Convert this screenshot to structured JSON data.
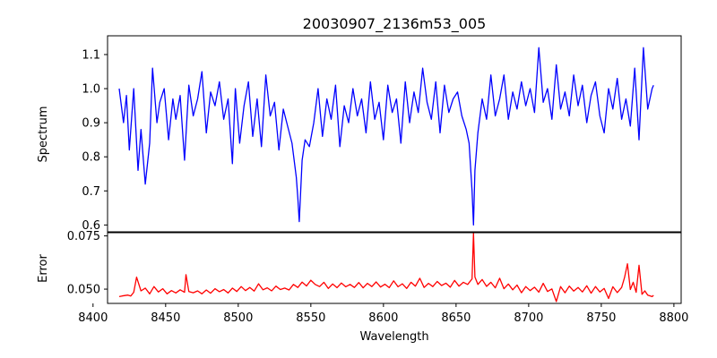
{
  "chart_data": [
    {
      "panel": "spectrum",
      "type": "line",
      "title": "20030907_2136m53_005",
      "xlabel": "",
      "ylabel": "Spectrum",
      "xlim": [
        8410,
        8805
      ],
      "ylim": [
        0.58,
        1.155
      ],
      "xticks": [
        8400,
        8450,
        8500,
        8550,
        8600,
        8650,
        8700,
        8750,
        8800
      ],
      "yticks": [
        0.6,
        0.7,
        0.8,
        0.9,
        1.0,
        1.1
      ],
      "ytick_labels": [
        "0.6",
        "0.7",
        "0.8",
        "0.9",
        "1.0",
        "1.1"
      ],
      "series": [
        {
          "name": "spectrum",
          "color": "#0000ff",
          "x": [
            8418,
            8421,
            8423,
            8425,
            8428,
            8431,
            8433,
            8436,
            8439,
            8441,
            8444,
            8446,
            8449,
            8452,
            8455,
            8457,
            8460,
            8463,
            8466,
            8469,
            8472,
            8475,
            8478,
            8481,
            8484,
            8487,
            8490,
            8493,
            8496,
            8498,
            8501,
            8504,
            8507,
            8510,
            8513,
            8516,
            8519,
            8522,
            8525,
            8528,
            8531,
            8534,
            8537,
            8540,
            8541,
            8542,
            8543,
            8544,
            8546,
            8549,
            8552,
            8555,
            8558,
            8561,
            8564,
            8567,
            8570,
            8573,
            8576,
            8579,
            8582,
            8585,
            8588,
            8591,
            8594,
            8597,
            8600,
            8603,
            8606,
            8609,
            8612,
            8615,
            8618,
            8621,
            8624,
            8627,
            8630,
            8633,
            8636,
            8639,
            8642,
            8645,
            8648,
            8651,
            8654,
            8657,
            8659,
            8661,
            8662,
            8663,
            8665,
            8668,
            8671,
            8674,
            8677,
            8680,
            8683,
            8686,
            8689,
            8692,
            8695,
            8698,
            8701,
            8704,
            8707,
            8710,
            8713,
            8716,
            8719,
            8722,
            8725,
            8728,
            8731,
            8734,
            8737,
            8740,
            8743,
            8746,
            8749,
            8752,
            8755,
            8758,
            8761,
            8764,
            8767,
            8770,
            8773,
            8776,
            8779,
            8782,
            8785,
            8786
          ],
          "y": [
            1.0,
            0.9,
            0.98,
            0.82,
            1.0,
            0.76,
            0.88,
            0.72,
            0.84,
            1.06,
            0.9,
            0.96,
            1.0,
            0.85,
            0.97,
            0.91,
            0.98,
            0.79,
            1.01,
            0.92,
            0.97,
            1.05,
            0.87,
            0.99,
            0.95,
            1.02,
            0.91,
            0.97,
            0.78,
            1.0,
            0.84,
            0.95,
            1.02,
            0.86,
            0.97,
            0.83,
            1.04,
            0.92,
            0.96,
            0.82,
            0.94,
            0.89,
            0.84,
            0.74,
            0.68,
            0.61,
            0.7,
            0.79,
            0.85,
            0.83,
            0.9,
            1.0,
            0.86,
            0.97,
            0.91,
            1.01,
            0.83,
            0.95,
            0.9,
            1.0,
            0.92,
            0.97,
            0.87,
            1.02,
            0.91,
            0.96,
            0.85,
            1.01,
            0.93,
            0.97,
            0.84,
            1.02,
            0.9,
            0.99,
            0.93,
            1.06,
            0.96,
            0.91,
            1.02,
            0.87,
            1.01,
            0.93,
            0.97,
            0.99,
            0.92,
            0.88,
            0.84,
            0.7,
            0.6,
            0.76,
            0.87,
            0.97,
            0.91,
            1.04,
            0.92,
            0.97,
            1.04,
            0.91,
            0.99,
            0.94,
            1.02,
            0.95,
            1.0,
            0.93,
            1.12,
            0.96,
            1.0,
            0.91,
            1.07,
            0.94,
            0.99,
            0.92,
            1.04,
            0.95,
            1.01,
            0.9,
            0.98,
            1.02,
            0.92,
            0.87,
            1.0,
            0.94,
            1.03,
            0.91,
            0.97,
            0.89,
            1.06,
            0.85,
            1.12,
            0.94,
            1.0,
            1.01
          ]
        }
      ]
    },
    {
      "panel": "error",
      "type": "line",
      "title": "",
      "xlabel": "Wavelength",
      "ylabel": "Error",
      "xlim": [
        8410,
        8805
      ],
      "ylim": [
        0.0433,
        0.0765
      ],
      "xticks": [
        8400,
        8450,
        8500,
        8550,
        8600,
        8650,
        8700,
        8750,
        8800
      ],
      "xtick_labels": [
        "8400",
        "8450",
        "8500",
        "8550",
        "8600",
        "8650",
        "8700",
        "8750",
        "8800"
      ],
      "yticks": [
        0.05,
        0.075
      ],
      "ytick_labels": [
        "0.050",
        "0.075"
      ],
      "series": [
        {
          "name": "error",
          "color": "#ff0000",
          "x": [
            8418,
            8420,
            8422,
            8424,
            8426,
            8428,
            8430,
            8433,
            8436,
            8439,
            8442,
            8445,
            8448,
            8451,
            8454,
            8457,
            8460,
            8463,
            8464,
            8466,
            8469,
            8472,
            8475,
            8478,
            8481,
            8484,
            8487,
            8490,
            8493,
            8496,
            8499,
            8502,
            8505,
            8508,
            8511,
            8514,
            8517,
            8520,
            8523,
            8526,
            8529,
            8532,
            8535,
            8538,
            8541,
            8544,
            8547,
            8550,
            8553,
            8556,
            8559,
            8562,
            8565,
            8568,
            8571,
            8574,
            8577,
            8580,
            8583,
            8586,
            8589,
            8592,
            8595,
            8598,
            8601,
            8604,
            8607,
            8610,
            8613,
            8616,
            8619,
            8622,
            8625,
            8628,
            8631,
            8634,
            8637,
            8640,
            8643,
            8646,
            8649,
            8652,
            8655,
            8658,
            8661,
            8662,
            8663,
            8665,
            8668,
            8671,
            8674,
            8677,
            8680,
            8683,
            8686,
            8689,
            8692,
            8695,
            8698,
            8701,
            8704,
            8707,
            8710,
            8713,
            8716,
            8719,
            8722,
            8725,
            8728,
            8731,
            8734,
            8737,
            8740,
            8743,
            8746,
            8749,
            8752,
            8755,
            8758,
            8761,
            8764,
            8766,
            8768,
            8770,
            8772,
            8774,
            8776,
            8778,
            8780,
            8782,
            8785,
            8786
          ],
          "y": [
            0.0465,
            0.0468,
            0.047,
            0.0472,
            0.0468,
            0.0485,
            0.0556,
            0.0492,
            0.0505,
            0.0478,
            0.0512,
            0.0487,
            0.0502,
            0.0478,
            0.0493,
            0.0482,
            0.0497,
            0.0485,
            0.0568,
            0.0489,
            0.0483,
            0.0492,
            0.0478,
            0.0496,
            0.0481,
            0.0502,
            0.0488,
            0.0498,
            0.0482,
            0.0505,
            0.0489,
            0.0512,
            0.0493,
            0.0508,
            0.0491,
            0.0525,
            0.0497,
            0.0506,
            0.0492,
            0.0514,
            0.0498,
            0.0505,
            0.0496,
            0.0522,
            0.0508,
            0.0533,
            0.0515,
            0.0542,
            0.0522,
            0.0512,
            0.0532,
            0.0503,
            0.0524,
            0.0507,
            0.0529,
            0.0511,
            0.0522,
            0.0508,
            0.0531,
            0.0506,
            0.0527,
            0.0512,
            0.0534,
            0.051,
            0.0523,
            0.0507,
            0.0539,
            0.0511,
            0.0525,
            0.0503,
            0.0532,
            0.0514,
            0.0551,
            0.0508,
            0.0527,
            0.0512,
            0.0536,
            0.0517,
            0.0528,
            0.0509,
            0.0541,
            0.0514,
            0.0532,
            0.0522,
            0.0548,
            0.0762,
            0.0557,
            0.0522,
            0.0545,
            0.0513,
            0.0532,
            0.0506,
            0.0551,
            0.0502,
            0.0524,
            0.0497,
            0.0519,
            0.0483,
            0.0512,
            0.0493,
            0.0509,
            0.0486,
            0.0527,
            0.0489,
            0.0501,
            0.0442,
            0.0512,
            0.0483,
            0.0514,
            0.0491,
            0.0508,
            0.0487,
            0.0516,
            0.0481,
            0.0512,
            0.0487,
            0.0503,
            0.0456,
            0.0511,
            0.0484,
            0.0508,
            0.0554,
            0.0619,
            0.0498,
            0.0532,
            0.0485,
            0.0612,
            0.0476,
            0.0492,
            0.0472,
            0.0465,
            0.0471
          ]
        }
      ]
    }
  ]
}
